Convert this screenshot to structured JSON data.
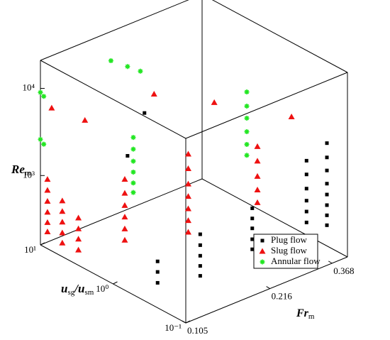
{
  "chart_data": {
    "type": "scatter3d",
    "xlabel": [
      "Fr",
      "m"
    ],
    "ylabel": [
      "u",
      "sg",
      "/u",
      "sm"
    ],
    "zlabel": [
      "Re",
      "m"
    ],
    "xlim": [
      0.105,
      0.42
    ],
    "xlog": true,
    "xticks": [
      0.105,
      0.216,
      0.368
    ],
    "ylim": [
      10,
      0.1
    ],
    "ylog": true,
    "yticks": [
      {
        "value": 10,
        "label": "10¹"
      },
      {
        "value": 1,
        "label": "10⁰"
      },
      {
        "value": 0.1,
        "label": "10⁻¹"
      }
    ],
    "zlim": [
      160,
      21000
    ],
    "zlog": true,
    "zticks": [
      {
        "value": 1000,
        "label": "10³"
      },
      {
        "value": 10000,
        "label": "10⁴"
      }
    ],
    "legend": "lower right",
    "series": [
      {
        "name": "Plug flow",
        "color": "#000000",
        "marker": "square",
        "x": [
          0.37,
          0.37,
          0.37,
          0.37,
          0.37,
          0.37,
          0.37,
          0.37,
          0.33,
          0.33,
          0.33,
          0.33,
          0.33,
          0.33,
          0.25,
          0.25,
          0.25,
          0.25,
          0.25,
          0.16,
          0.16,
          0.16,
          0.16,
          0.16,
          0.12,
          0.12,
          0.12,
          0.2,
          0.16
        ],
        "y": [
          0.12,
          0.12,
          0.12,
          0.12,
          0.12,
          0.12,
          0.12,
          0.12,
          0.15,
          0.15,
          0.15,
          0.15,
          0.15,
          0.15,
          0.3,
          0.3,
          0.3,
          0.3,
          0.3,
          0.3,
          0.3,
          0.3,
          0.3,
          0.3,
          0.4,
          0.4,
          0.4,
          4,
          3
        ],
        "z": [
          400,
          520,
          680,
          900,
          1200,
          1700,
          2400,
          3500,
          450,
          600,
          800,
          1100,
          1600,
          2300,
          230,
          300,
          400,
          520,
          680,
          200,
          260,
          340,
          450,
          600,
          210,
          280,
          370,
          3500,
          1700
        ]
      },
      {
        "name": "Slug flow",
        "color": "#ee1111",
        "marker": "triangle",
        "x": [
          0.105,
          0.105,
          0.105,
          0.105,
          0.105,
          0.105,
          0.105,
          0.105,
          0.105,
          0.105,
          0.105,
          0.105,
          0.105,
          0.105,
          0.105,
          0.14,
          0.14,
          0.14,
          0.14,
          0.14,
          0.14,
          0.2,
          0.2,
          0.2,
          0.2,
          0.2,
          0.2,
          0.2,
          0.3,
          0.3,
          0.3,
          0.3,
          0.3,
          0.105,
          0.12,
          0.18,
          0.25,
          0.35
        ],
        "y": [
          8,
          8,
          8,
          8,
          8,
          8,
          5,
          5,
          5,
          5,
          5,
          3,
          3,
          3,
          3,
          2,
          2,
          2,
          2,
          2,
          2,
          1,
          1,
          1,
          1,
          1,
          1,
          1,
          0.5,
          0.5,
          0.5,
          0.5,
          0.5,
          7,
          4,
          2,
          1,
          0.3
        ],
        "z": [
          250,
          320,
          420,
          560,
          750,
          1000,
          230,
          300,
          400,
          530,
          700,
          240,
          320,
          420,
          560,
          260,
          350,
          480,
          650,
          900,
          1300,
          280,
          380,
          520,
          720,
          1000,
          1500,
          2200,
          500,
          700,
          1000,
          1500,
          2200,
          7000,
          5500,
          9000,
          6500,
          5000
        ]
      },
      {
        "name": "Annular flow",
        "color": "#22e622",
        "marker": "star",
        "x": [
          0.105,
          0.105,
          0.105,
          0.105,
          0.15,
          0.16,
          0.17,
          0.16,
          0.16,
          0.16,
          0.16,
          0.16,
          0.16,
          0.3,
          0.3,
          0.3,
          0.3,
          0.3,
          0.3
        ],
        "y": [
          10,
          9,
          10,
          9,
          4,
          3,
          2.5,
          2.5,
          2.5,
          2.5,
          2.5,
          2.5,
          2.5,
          0.7,
          0.7,
          0.7,
          0.7,
          0.7,
          0.7
        ],
        "z": [
          9000,
          8500,
          2600,
          2400,
          20000,
          18000,
          16000,
          700,
          900,
          1200,
          1600,
          2200,
          3000,
          1500,
          2000,
          2800,
          4000,
          5500,
          8000
        ]
      }
    ]
  }
}
